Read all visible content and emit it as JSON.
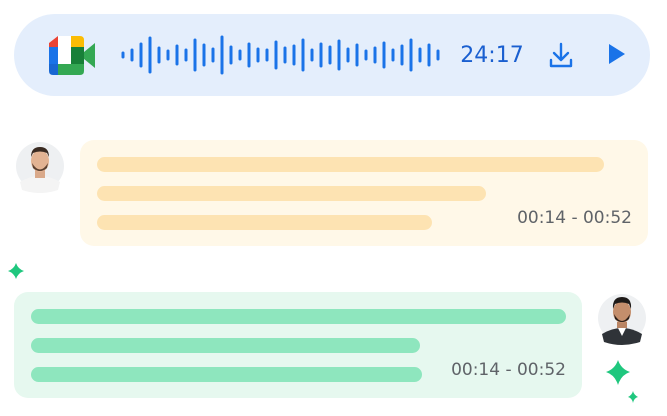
{
  "player": {
    "duration": "24:17"
  },
  "messages": [
    {
      "timestamp": "00:14 - 00:52"
    },
    {
      "timestamp": "00:14 - 00:52"
    }
  ]
}
